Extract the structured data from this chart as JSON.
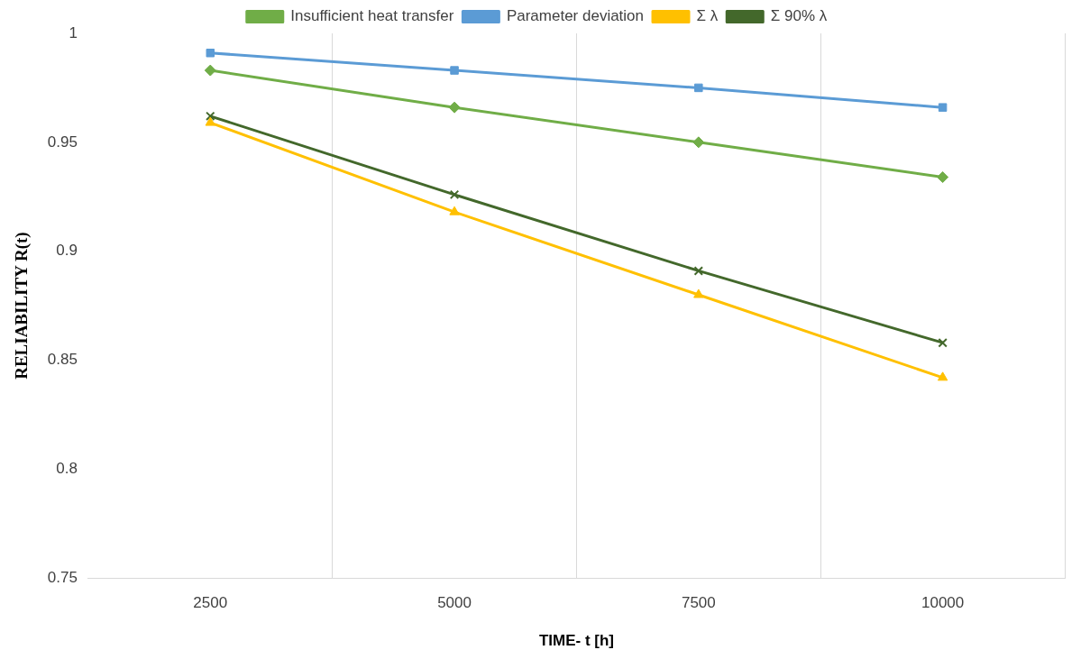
{
  "chart_data": {
    "type": "line",
    "xlabel": "TIME- t [h]",
    "ylabel": "RELIABILITY R(t)",
    "categories": [
      "2500",
      "5000",
      "7500",
      "10000"
    ],
    "series": [
      {
        "name": "Insufficient heat transfer",
        "color": "#70ad47",
        "marker": "diamond",
        "values": [
          0.983,
          0.966,
          0.95,
          0.934
        ]
      },
      {
        "name": "Parameter deviation",
        "color": "#5b9bd5",
        "marker": "square",
        "values": [
          0.991,
          0.983,
          0.975,
          0.966
        ]
      },
      {
        "name": "Σ λ",
        "color": "#ffc000",
        "marker": "triangle",
        "values": [
          0.959,
          0.918,
          0.88,
          0.842
        ]
      },
      {
        "name": "Σ 90% λ",
        "color": "#43682b",
        "marker": "cross",
        "values": [
          0.962,
          0.926,
          0.891,
          0.858
        ]
      }
    ],
    "ylim": [
      0.75,
      1
    ],
    "yticks": [
      0.75,
      0.8,
      0.85,
      0.9,
      0.95,
      1
    ],
    "grid": "x",
    "legend": "top",
    "line_style": "solid"
  }
}
